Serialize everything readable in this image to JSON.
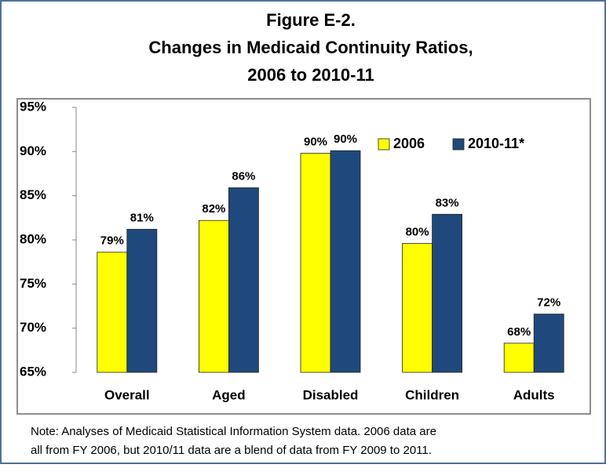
{
  "chart_data": {
    "type": "bar",
    "title": [
      "Figure E-2.",
      "Changes in Medicaid Continuity Ratios,",
      "2006 to 2010-11"
    ],
    "categories": [
      "Overall",
      "Aged",
      "Disabled",
      "Children",
      "Adults"
    ],
    "series": [
      {
        "name": "2006",
        "color": "#ffff00",
        "values": [
          78.6,
          82.2,
          89.8,
          79.6,
          68.3
        ],
        "value_labels": [
          "79%",
          "82%",
          "90%",
          "80%",
          "68%"
        ]
      },
      {
        "name": "2010-11*",
        "color": "#1f497d",
        "values": [
          81.2,
          85.9,
          90.1,
          82.9,
          71.6
        ],
        "value_labels": [
          "81%",
          "86%",
          "90%",
          "83%",
          "72%"
        ]
      }
    ],
    "ylim": [
      65,
      95
    ],
    "yticks": [
      {
        "value": 65,
        "label": "65%"
      },
      {
        "value": 70,
        "label": "70%"
      },
      {
        "value": 75,
        "label": "75%"
      },
      {
        "value": 80,
        "label": "80%"
      },
      {
        "value": 85,
        "label": "85%"
      },
      {
        "value": 90,
        "label": "90%"
      },
      {
        "value": 95,
        "label": "95%"
      }
    ],
    "grid": false,
    "legend": "upper right",
    "note": [
      "Note: Analyses of Medicaid Statistical Information System data.  2006 data are",
      "all from FY 2006, but 2010/11 data are a blend of data from FY 2009 to 2011."
    ]
  }
}
